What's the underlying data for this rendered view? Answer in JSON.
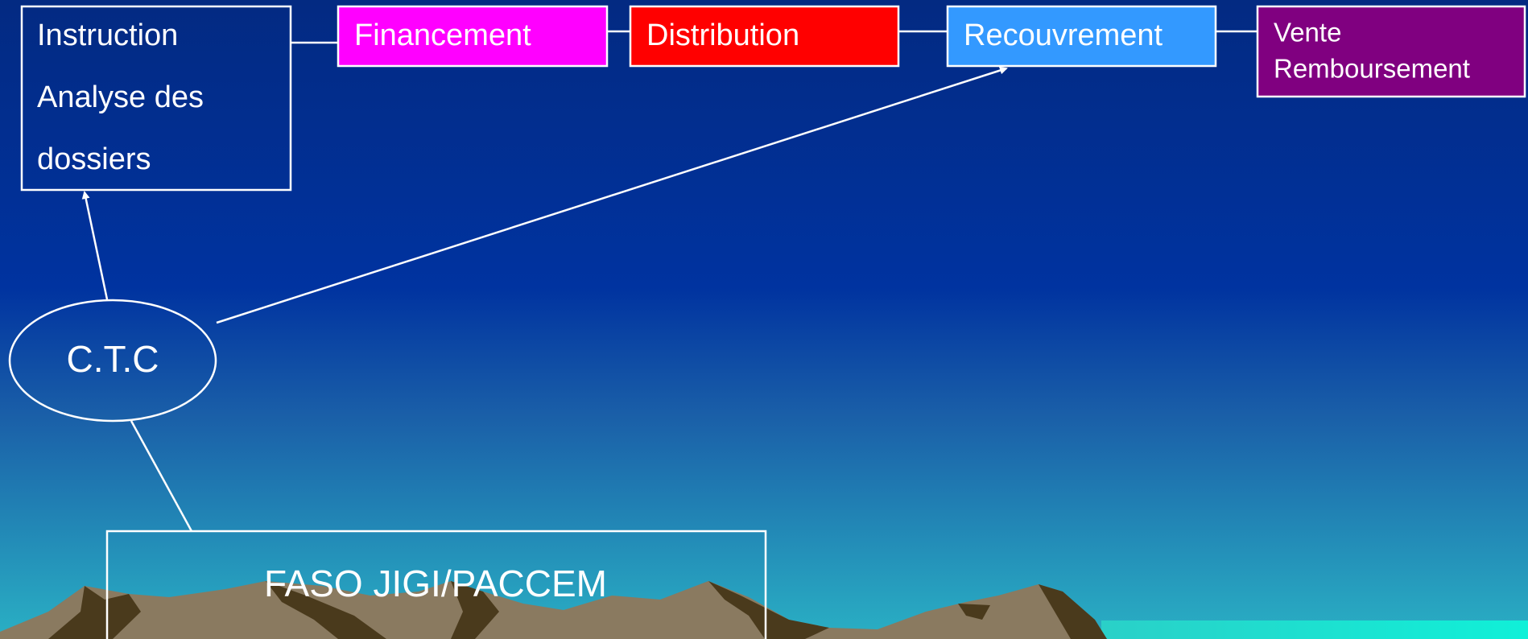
{
  "nodes": [
    {
      "lines": [
        "Instruction",
        "Analyse des",
        "dossiers"
      ]
    },
    {
      "label": "Financement"
    },
    {
      "label": "Distribution"
    },
    {
      "label": "Recouvrement"
    },
    {
      "lines": [
        "Vente",
        "Remboursement"
      ]
    },
    {
      "label": "C.T.C"
    },
    {
      "label": "FASO JIGI/PACCEM"
    }
  ]
}
